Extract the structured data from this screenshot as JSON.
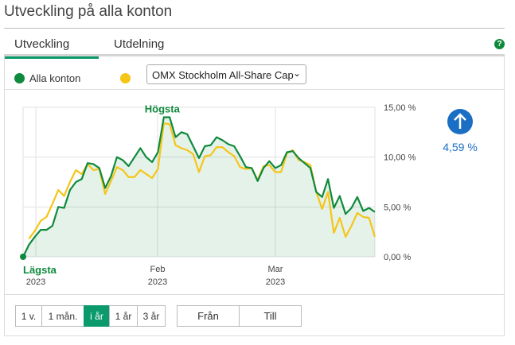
{
  "title": "Utveckling på alla konton",
  "tabs": [
    {
      "label": "Utveckling",
      "active": true
    },
    {
      "label": "Utdelning",
      "active": false
    }
  ],
  "help_icon": "question-circle-icon",
  "legend": {
    "series1": "Alla konton",
    "series1_color": "#0f8a3c",
    "series2_color": "#f5c518"
  },
  "compare_select": {
    "value": "OMX Stockholm All-Share Cap"
  },
  "change": {
    "value": "4,59 %",
    "direction": "up",
    "color": "#1a6fc4"
  },
  "range_buttons": [
    {
      "label": "1 v."
    },
    {
      "label": "1 mån."
    },
    {
      "label": "i år",
      "active": true
    },
    {
      "label": "1 år"
    },
    {
      "label": "3 år"
    }
  ],
  "date_buttons": {
    "from": "Från",
    "to": "Till"
  },
  "chart_data": {
    "type": "line",
    "yticks": [
      "15,00 %",
      "10,00 %",
      "5,00 %",
      "0,00 %"
    ],
    "ylim": [
      0,
      15
    ],
    "xticks": [
      {
        "label": "2023"
      },
      {
        "label": "Feb",
        "sub": "2023"
      },
      {
        "label": "Mar",
        "sub": "2023"
      }
    ],
    "annotations": {
      "max": "Högsta",
      "min": "Lägsta",
      "min_sub": "2023"
    },
    "grid": true,
    "series": [
      {
        "name": "Alla konton",
        "color": "#0f8a3c",
        "values": [
          0,
          1.2,
          2.0,
          2.7,
          2.7,
          3.1,
          5.0,
          4.9,
          6.7,
          7.5,
          7.8,
          9.4,
          9.3,
          8.9,
          6.9,
          8.1,
          10.0,
          9.7,
          9.1,
          10.0,
          10.9,
          10.0,
          9.5,
          10.5,
          14.0,
          14.0,
          12.0,
          12.5,
          12.3,
          11.1,
          9.9,
          11.1,
          11.2,
          12.0,
          11.7,
          11.3,
          11.1,
          10.1,
          9.0,
          8.9,
          7.6,
          8.9,
          9.6,
          8.9,
          9.2,
          10.5,
          10.6,
          9.9,
          9.4,
          8.9,
          6.5,
          6.0,
          7.8,
          4.9,
          6.1,
          4.3,
          4.9,
          6.0,
          4.6,
          4.9,
          4.5
        ]
      },
      {
        "name": "OMX Stockholm All-Share Cap",
        "color": "#f5c518",
        "values": [
          null,
          1.8,
          2.6,
          3.6,
          4.0,
          5.3,
          6.7,
          6.1,
          7.5,
          8.7,
          8.3,
          9.3,
          8.7,
          8.8,
          6.3,
          7.6,
          9.0,
          8.7,
          8.0,
          8.0,
          8.7,
          8.3,
          7.9,
          8.8,
          13.4,
          13.3,
          11.2,
          10.9,
          10.7,
          10.3,
          8.5,
          10.1,
          10.2,
          11.0,
          11.0,
          10.5,
          10.1,
          9.0,
          8.8,
          8.9,
          7.7,
          9.1,
          9.2,
          8.5,
          8.5,
          10.4,
          10.7,
          9.7,
          9.5,
          9.2,
          6.5,
          4.8,
          6.5,
          2.4,
          3.9,
          2.0,
          3.1,
          4.4,
          4.0,
          3.9,
          2.0
        ]
      }
    ]
  }
}
